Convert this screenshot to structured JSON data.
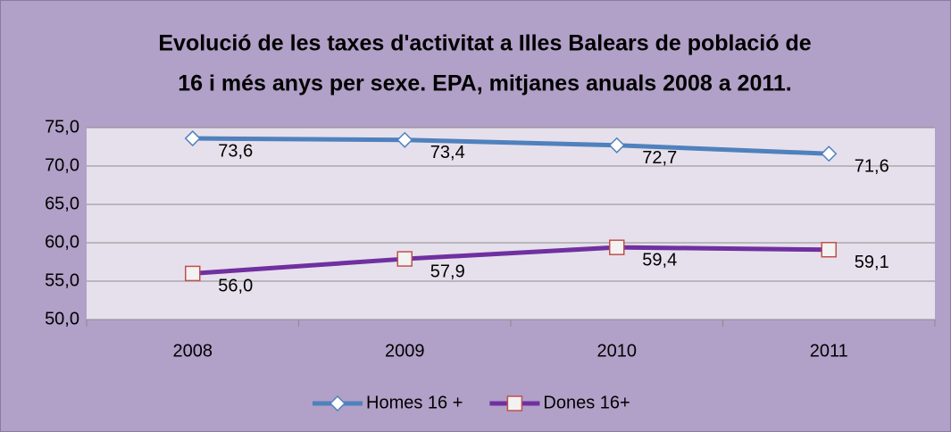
{
  "chart_data": {
    "type": "line",
    "title": [
      "Evolució de les taxes d'activitat a Illes Balears de població de",
      "16 i més anys per sexe. EPA, mitjanes anuals 2008 a 2011."
    ],
    "categories": [
      "2008",
      "2009",
      "2010",
      "2011"
    ],
    "series": [
      {
        "name": "Homes 16 +",
        "color": "#4f81bd",
        "marker": "diamond",
        "marker_color": "#4f81bd",
        "values": [
          73.6,
          73.4,
          72.7,
          71.6
        ],
        "value_labels": [
          "73,6",
          "73,4",
          "72,7",
          "71,6"
        ]
      },
      {
        "name": "Dones 16+",
        "color": "#7030a0",
        "marker": "square",
        "marker_color": "#c0504d",
        "values": [
          56.0,
          57.9,
          59.4,
          59.1
        ],
        "value_labels": [
          "56,0",
          "57,9",
          "59,4",
          "59,1"
        ]
      }
    ],
    "ylim": [
      50,
      75
    ],
    "yticks": [
      {
        "value": 50,
        "label": "50,0"
      },
      {
        "value": 55,
        "label": "55,0"
      },
      {
        "value": 60,
        "label": "60,0"
      },
      {
        "value": 65,
        "label": "65,0"
      },
      {
        "value": 70,
        "label": "70,0"
      },
      {
        "value": 75,
        "label": "75,0"
      }
    ],
    "grid": true,
    "legend": "bottom"
  }
}
